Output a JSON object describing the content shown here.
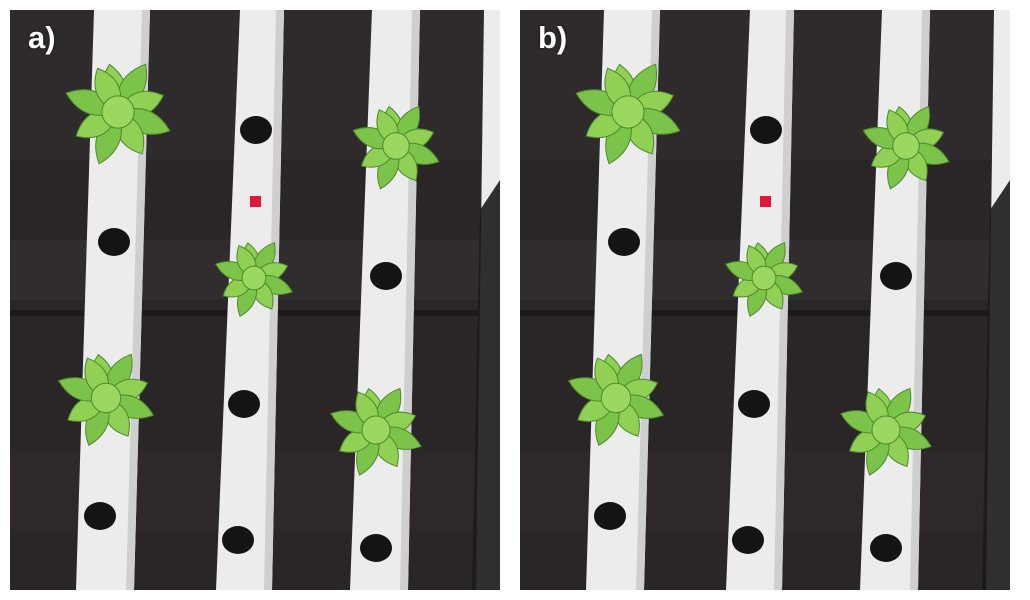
{
  "panels": [
    {
      "id": "a",
      "label": "a)"
    },
    {
      "id": "b",
      "label": "b)"
    }
  ],
  "colors": {
    "mulch": "#2a2527",
    "pipe": "#ececec",
    "hole": "#141414",
    "leaf": "#7cc34a",
    "leaf_dark": "#4f8a2c",
    "marker": "#e0183c"
  },
  "content": {
    "plants": 5,
    "pipes": 3,
    "red_markers": 1
  }
}
